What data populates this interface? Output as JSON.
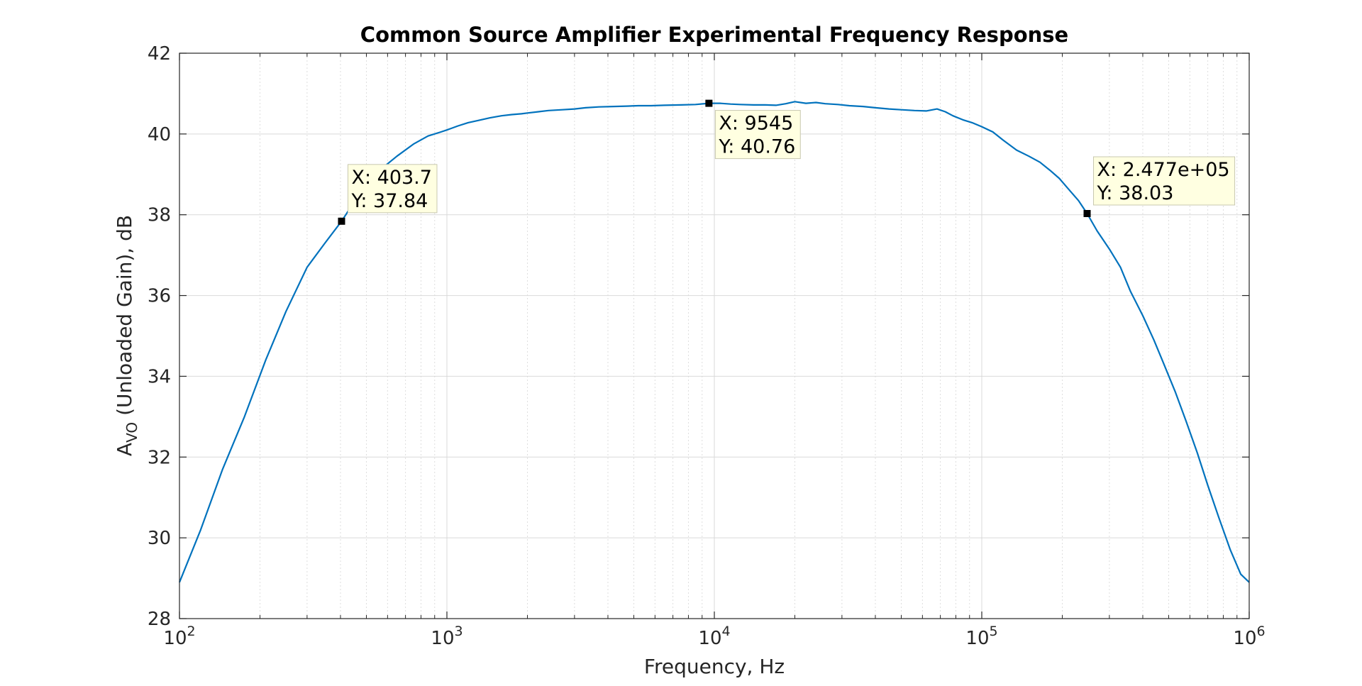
{
  "chart_data": {
    "type": "line",
    "title": "Common Source Amplifier Experimental Frequency Response",
    "xlabel": "Frequency, Hz",
    "ylabel_main": "A",
    "ylabel_sub": "VO",
    "ylabel_rest": " (Unloaded Gain), dB",
    "x_scale": "log",
    "xlim": [
      100,
      1000000
    ],
    "ylim": [
      28,
      42
    ],
    "grid": true,
    "minor_grid": true,
    "line_color": "#0072BD",
    "x_ticks": [
      {
        "base": "10",
        "exp": "2"
      },
      {
        "base": "10",
        "exp": "3"
      },
      {
        "base": "10",
        "exp": "4"
      },
      {
        "base": "10",
        "exp": "5"
      },
      {
        "base": "10",
        "exp": "6"
      }
    ],
    "y_ticks": [
      "28",
      "30",
      "32",
      "34",
      "36",
      "38",
      "40",
      "42"
    ],
    "series": [
      {
        "x": [
          100,
          120,
          145,
          175,
          210,
          250,
          300,
          350,
          403.7,
          480,
          560,
          650,
          750,
          850,
          950,
          1000,
          1100,
          1200,
          1300,
          1450,
          1600,
          1750,
          1900,
          2000,
          2200,
          2400,
          2700,
          3000,
          3300,
          3700,
          4200,
          4700,
          5200,
          5800,
          6500,
          7500,
          8500,
          9545,
          10500,
          11500,
          12500,
          14000,
          15500,
          17000,
          18500,
          20000,
          22000,
          24000,
          26000,
          29000,
          32000,
          36000,
          40000,
          45000,
          50000,
          56000,
          62000,
          68000,
          73000,
          78000,
          85000,
          92000,
          100000,
          110000,
          120000,
          135000,
          150000,
          165000,
          180000,
          195000,
          210000,
          230000,
          247700,
          270000,
          300000,
          330000,
          360000,
          400000,
          440000,
          480000,
          530000,
          580000,
          640000,
          700000,
          770000,
          850000,
          930000,
          1000000
        ],
        "y": [
          28.9,
          30.2,
          31.7,
          33.0,
          34.4,
          35.6,
          36.7,
          37.3,
          37.84,
          38.6,
          39.1,
          39.45,
          39.75,
          39.95,
          40.05,
          40.1,
          40.2,
          40.28,
          40.33,
          40.4,
          40.45,
          40.48,
          40.5,
          40.52,
          40.55,
          40.58,
          40.6,
          40.62,
          40.65,
          40.67,
          40.68,
          40.69,
          40.7,
          40.7,
          40.71,
          40.72,
          40.73,
          40.76,
          40.76,
          40.74,
          40.73,
          40.72,
          40.72,
          40.71,
          40.75,
          40.8,
          40.76,
          40.78,
          40.75,
          40.73,
          40.7,
          40.68,
          40.65,
          40.62,
          40.6,
          40.58,
          40.57,
          40.62,
          40.55,
          40.45,
          40.35,
          40.28,
          40.18,
          40.05,
          39.85,
          39.6,
          39.45,
          39.3,
          39.1,
          38.9,
          38.65,
          38.35,
          38.03,
          37.6,
          37.15,
          36.7,
          36.1,
          35.5,
          34.9,
          34.3,
          33.6,
          32.9,
          32.1,
          31.3,
          30.5,
          29.7,
          29.1,
          28.9
        ]
      }
    ],
    "datatips": [
      {
        "x": 403.7,
        "y": 37.84,
        "x_text": "X: 403.7",
        "y_text": "Y: 37.84"
      },
      {
        "x": 9545,
        "y": 40.76,
        "x_text": "X: 9545",
        "y_text": "Y: 40.76"
      },
      {
        "x": 247700,
        "y": 38.03,
        "x_text": "X: 2.477e+05",
        "y_text": "Y: 38.03"
      }
    ]
  }
}
